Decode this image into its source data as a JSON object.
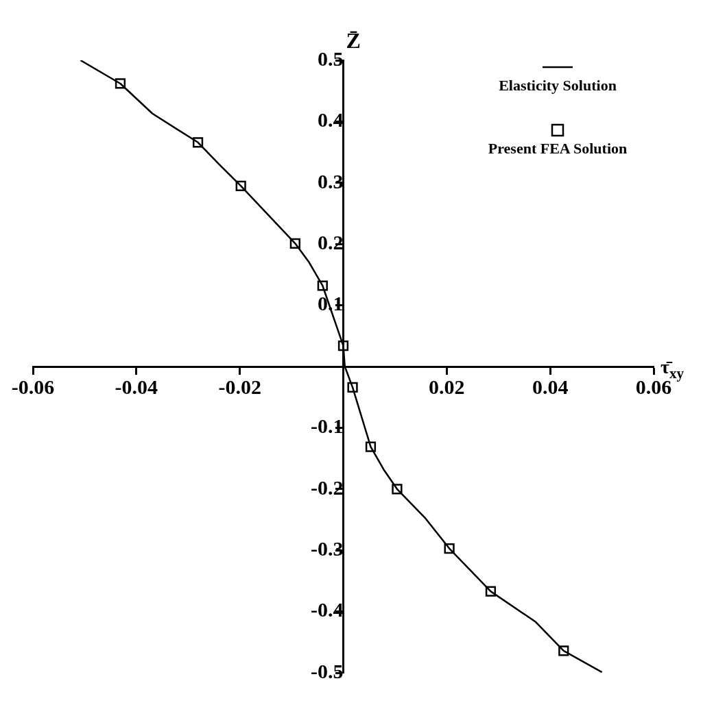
{
  "chart_data": {
    "type": "line",
    "xlabel": "τ̄$_{xy}$",
    "ylabel": "Z̄",
    "xlim": [
      -0.06,
      0.06
    ],
    "ylim": [
      -0.5,
      0.5
    ],
    "xticks": [
      -0.06,
      -0.04,
      -0.02,
      0.02,
      0.04,
      0.06
    ],
    "yticks": [
      -0.5,
      -0.4,
      -0.3,
      -0.2,
      -0.1,
      0.1,
      0.2,
      0.3,
      0.4,
      0.5
    ],
    "grid": false,
    "legend": "top right",
    "series": [
      {
        "name": "Elasticity Solution",
        "type": "line",
        "color": "#000000",
        "marker": "none",
        "x": [
          -0.0508,
          -0.0431,
          -0.0369,
          -0.0281,
          -0.024,
          -0.0198,
          -0.0093,
          -0.0066,
          -0.004,
          0.0,
          0.0003,
          0.0018,
          0.0053,
          0.0078,
          0.0104,
          0.0158,
          0.0205,
          0.0285,
          0.0372,
          0.0426,
          0.05
        ],
        "values": [
          0.5,
          0.462,
          0.413,
          0.366,
          0.33,
          0.295,
          0.201,
          0.17,
          0.132,
          0.034,
          0,
          -0.034,
          -0.131,
          -0.168,
          -0.2,
          -0.247,
          -0.297,
          -0.367,
          -0.417,
          -0.464,
          -0.499
        ]
      },
      {
        "name": "Present FEA Solution",
        "type": "scatter",
        "color": "#000000",
        "marker": "square",
        "x": [
          -0.0431,
          -0.0281,
          -0.0198,
          -0.0093,
          -0.004,
          0.0,
          0.0018,
          0.0053,
          0.0104,
          0.0205,
          0.0285,
          0.0426
        ],
        "values": [
          0.462,
          0.366,
          0.295,
          0.201,
          0.132,
          0.034,
          -0.034,
          -0.131,
          -0.2,
          -0.297,
          -0.367,
          -0.464
        ]
      }
    ]
  }
}
